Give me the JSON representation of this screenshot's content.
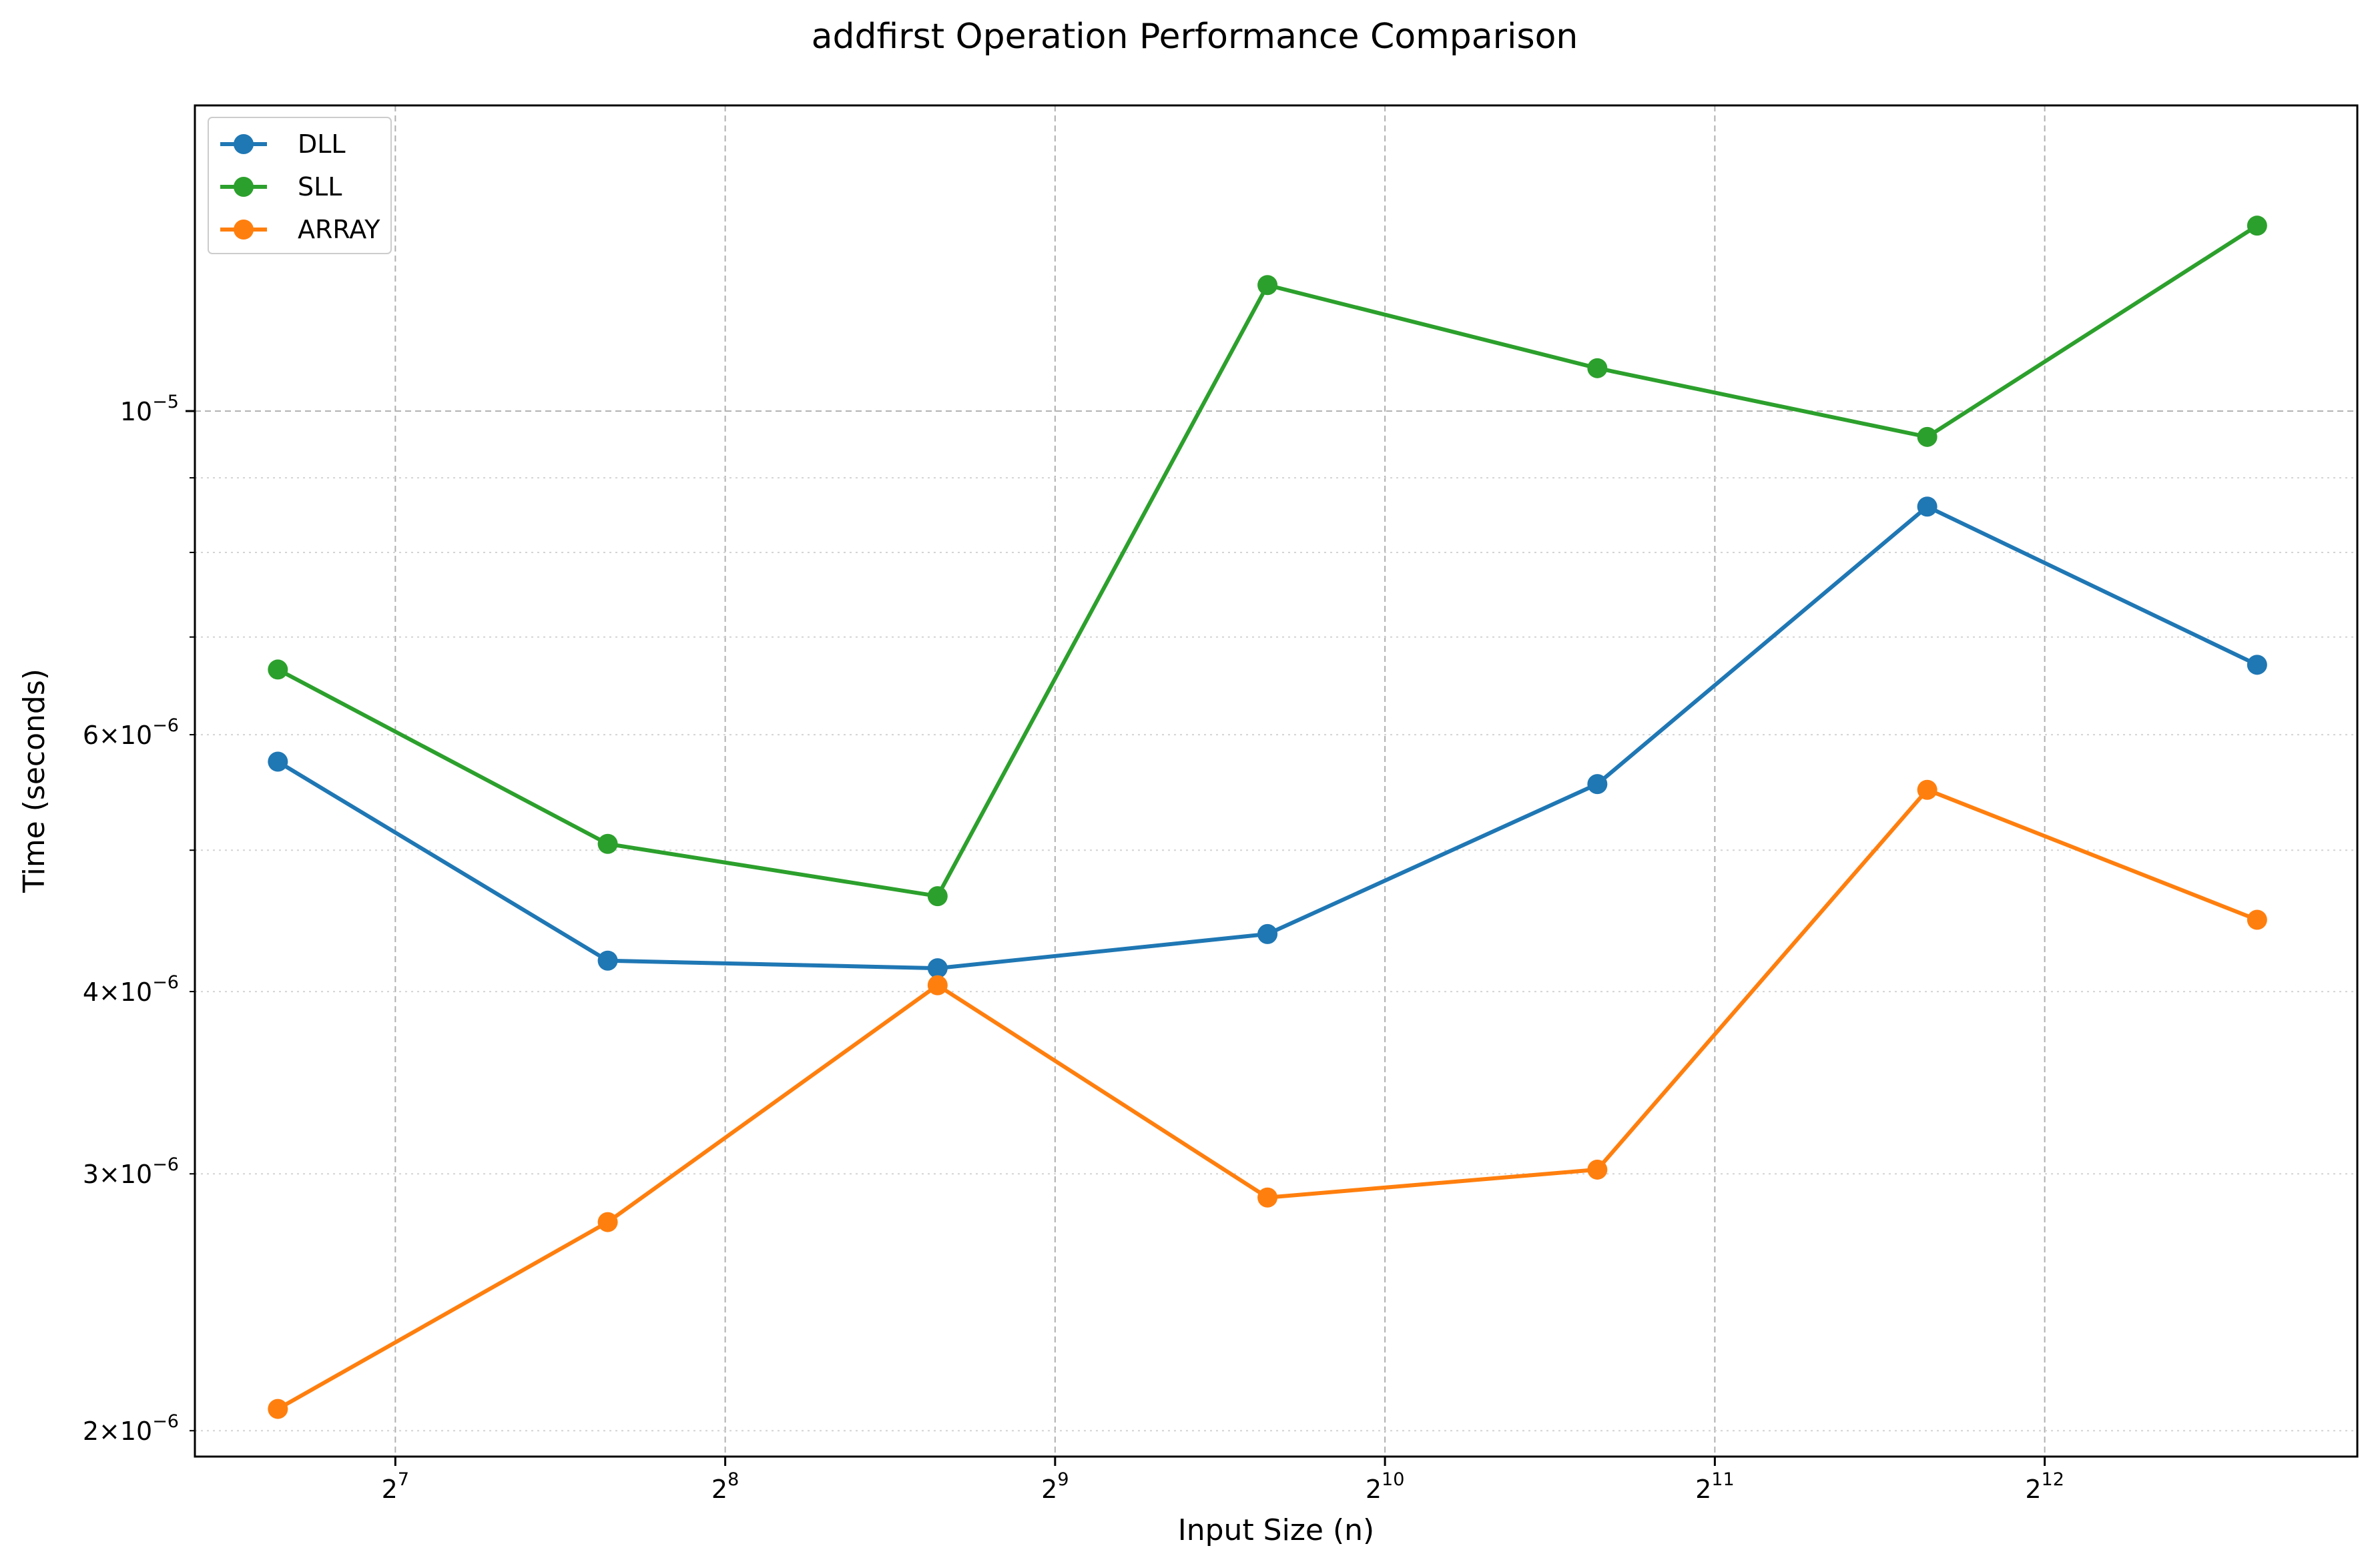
{
  "chart_data": {
    "type": "line",
    "title": "addfirst Operation Performance Comparison",
    "xlabel": "Input Size (n)",
    "ylabel": "Time (seconds)",
    "x_scale": "log2",
    "y_scale": "log10",
    "xlim": [
      84,
      7900
    ],
    "ylim": [
      1.92e-06,
      1.62e-05
    ],
    "x": [
      100,
      200,
      400,
      800,
      1600,
      3200,
      6400
    ],
    "x_ticks": [
      {
        "value": 128,
        "base": "2",
        "exp": "7"
      },
      {
        "value": 256,
        "base": "2",
        "exp": "8"
      },
      {
        "value": 512,
        "base": "2",
        "exp": "9"
      },
      {
        "value": 1024,
        "base": "2",
        "exp": "10"
      },
      {
        "value": 2048,
        "base": "2",
        "exp": "11"
      },
      {
        "value": 4096,
        "base": "2",
        "exp": "12"
      }
    ],
    "y_major_ticks": [
      {
        "value": 1e-05,
        "mant": "",
        "exp": "−5"
      }
    ],
    "y_minor_ticks": [
      {
        "value": 2e-06,
        "mant": "2",
        "exp": "−6"
      },
      {
        "value": 3e-06,
        "mant": "3",
        "exp": "−6"
      },
      {
        "value": 4e-06,
        "mant": "4",
        "exp": "−6"
      },
      {
        "value": 5e-06,
        "mant": "",
        "exp": ""
      },
      {
        "value": 6e-06,
        "mant": "6",
        "exp": "−6"
      },
      {
        "value": 7e-06,
        "mant": "",
        "exp": ""
      },
      {
        "value": 8e-06,
        "mant": "",
        "exp": ""
      },
      {
        "value": 9e-06,
        "mant": "",
        "exp": ""
      }
    ],
    "grid": true,
    "legend_position": "top-left",
    "series": [
      {
        "name": "DLL",
        "color": "#1f77b4",
        "values": [
          5.75e-06,
          4.2e-06,
          4.15e-06,
          4.38e-06,
          5.55e-06,
          8.6e-06,
          6.7e-06
        ]
      },
      {
        "name": "SLL",
        "color": "#2ca02c",
        "values": [
          6.65e-06,
          5.05e-06,
          4.65e-06,
          1.22e-05,
          1.07e-05,
          9.6e-06,
          1.34e-05
        ]
      },
      {
        "name": "ARRAY",
        "color": "#ff7f0e",
        "values": [
          2.07e-06,
          2.78e-06,
          4.04e-06,
          2.89e-06,
          3.02e-06,
          5.5e-06,
          4.48e-06
        ]
      }
    ]
  }
}
